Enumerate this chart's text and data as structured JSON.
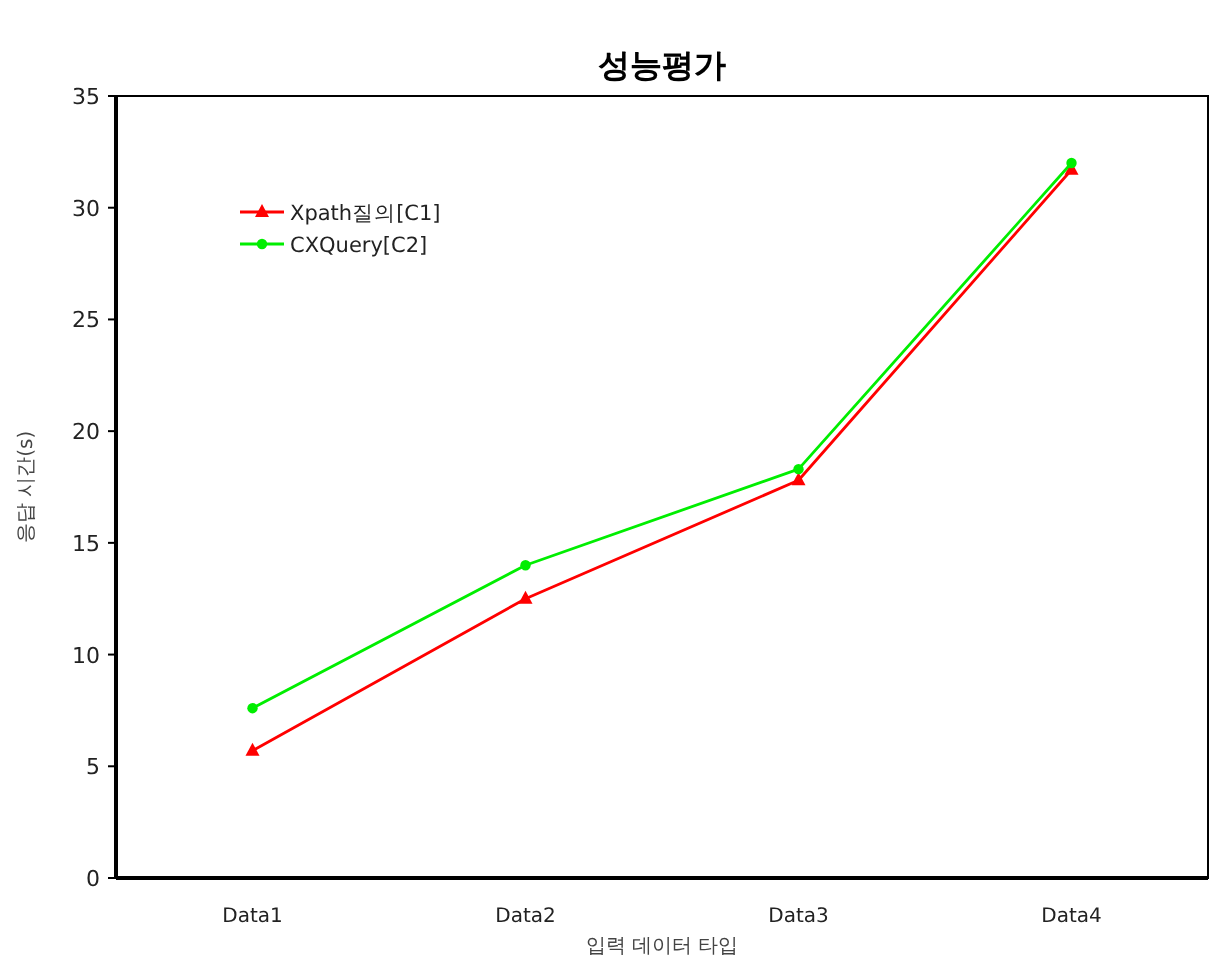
{
  "chart_data": {
    "type": "line",
    "title": "성능평가",
    "xlabel": "입력 데이터 타입",
    "ylabel": "응답 시간(s)",
    "categories": [
      "Data1",
      "Data2",
      "Data3",
      "Data4"
    ],
    "series": [
      {
        "name": "Xpath질의[C1]",
        "color": "#ff0000",
        "marker": "triangle",
        "values": [
          5.7,
          12.5,
          17.8,
          31.7
        ]
      },
      {
        "name": "CXQuery[C2]",
        "color": "#00ee00",
        "marker": "circle",
        "values": [
          7.6,
          14.0,
          18.3,
          32.0
        ]
      }
    ],
    "ylim": [
      0,
      35
    ],
    "yticks": [
      0,
      5,
      10,
      15,
      20,
      25,
      30,
      35
    ],
    "grid": false,
    "legend": "top left",
    "line_style": "solid"
  }
}
